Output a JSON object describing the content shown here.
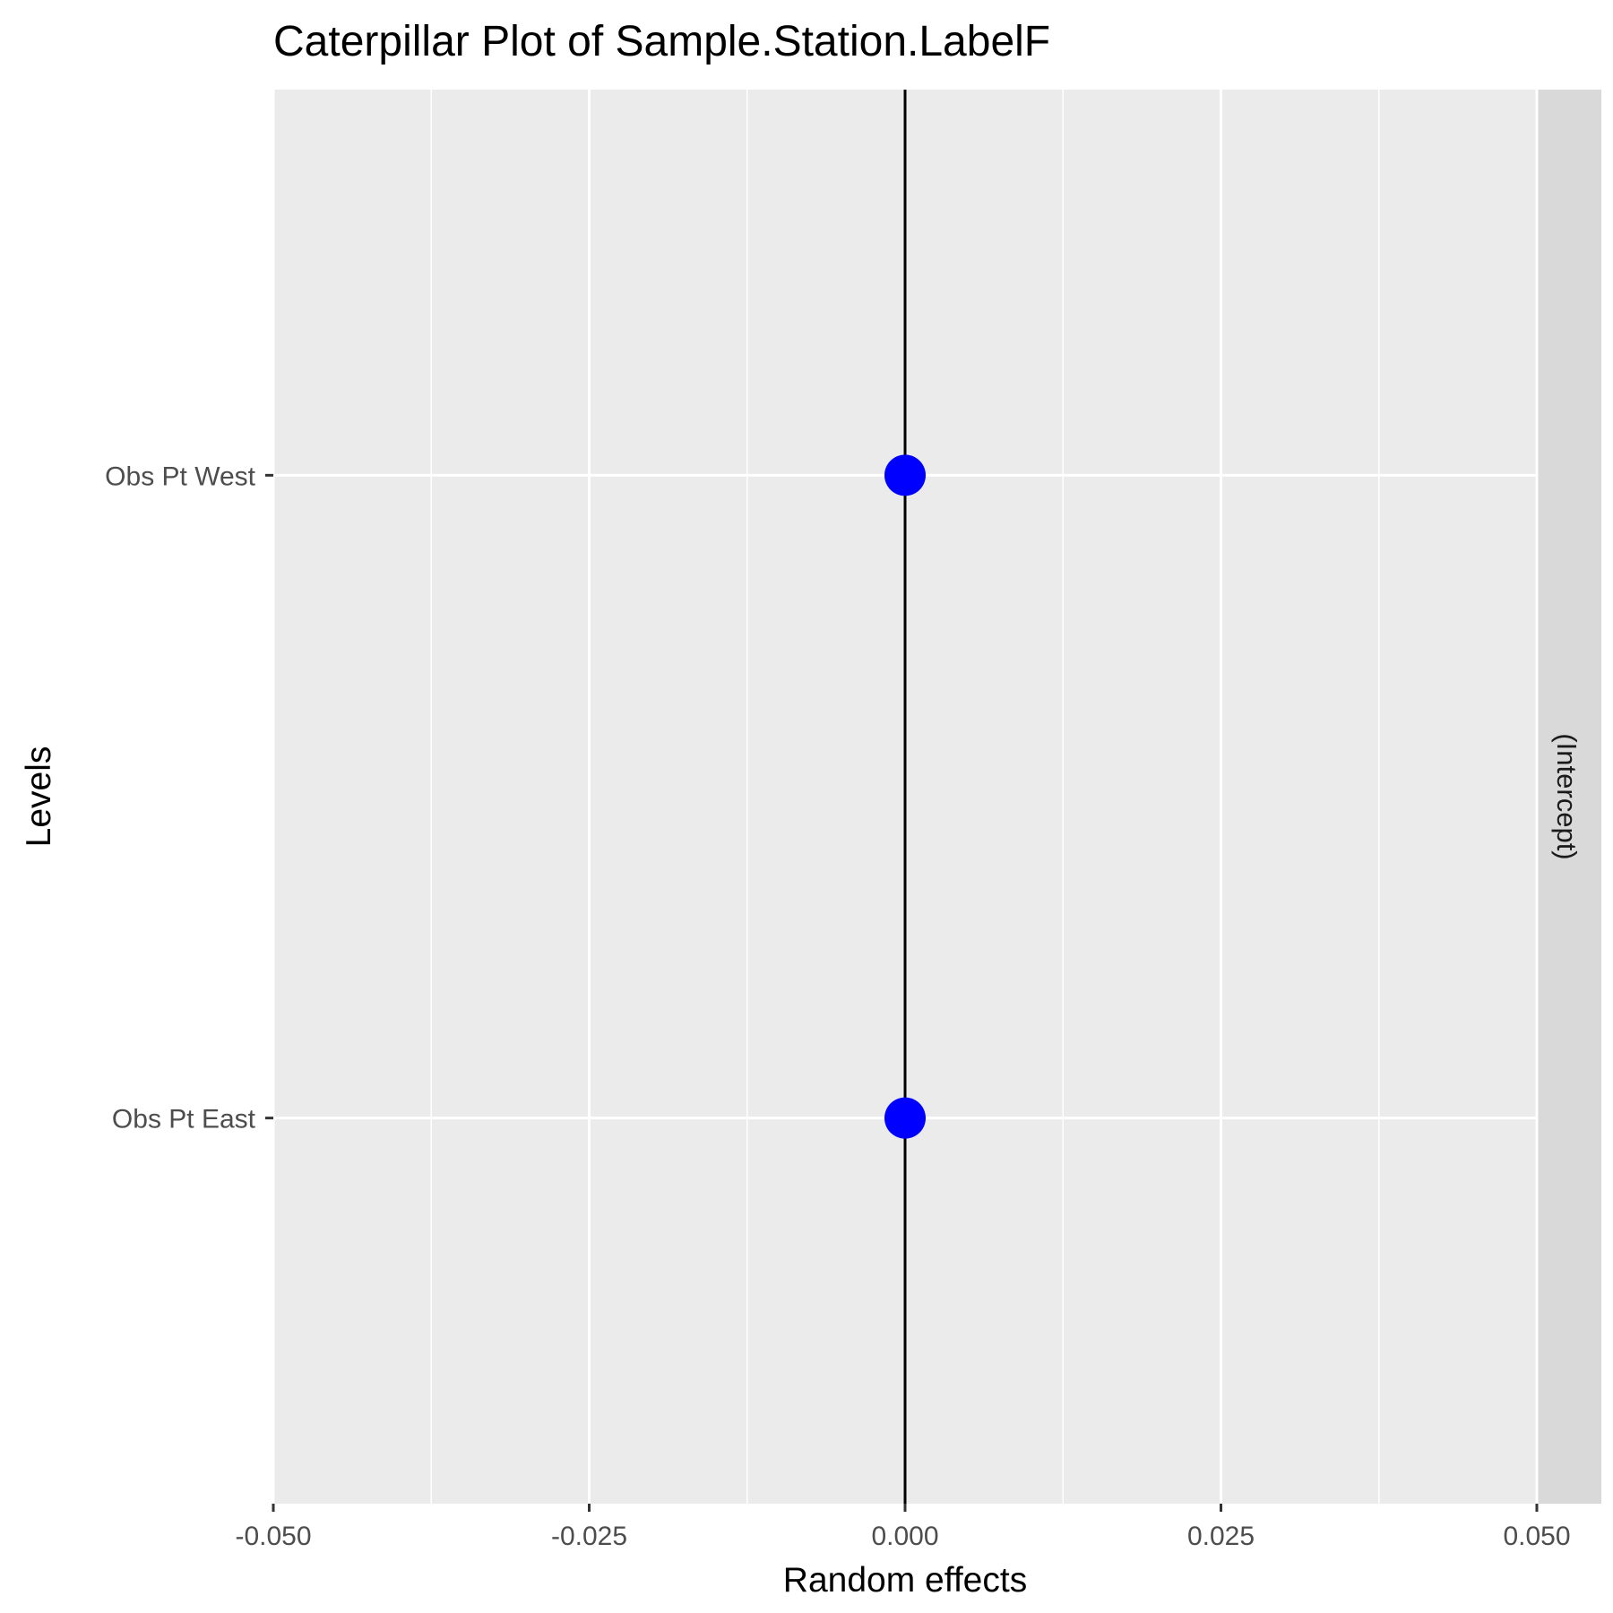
{
  "chart_data": {
    "type": "scatter",
    "title": "Caterpillar Plot of  Sample.Station.LabelF",
    "xlabel": "Random effects",
    "ylabel": "Levels",
    "facet_label": "(Intercept)",
    "xlim": [
      -0.05,
      0.05
    ],
    "x_ticks": [
      -0.05,
      -0.025,
      0,
      0.025,
      0.05
    ],
    "x_tick_labels": [
      "-0.050",
      "-0.025",
      "0.000",
      "0.025",
      "0.050"
    ],
    "categories": [
      "Obs Pt East",
      "Obs Pt West"
    ],
    "points": [
      {
        "level": "Obs Pt West",
        "value": 0.0
      },
      {
        "level": "Obs Pt East",
        "value": 0.0
      }
    ],
    "reference_line_x": 0,
    "grid": true,
    "colors": {
      "point": "#0000ff",
      "panel_background": "#ebebeb",
      "strip_background": "#d9d9d9",
      "grid": "#ffffff",
      "reference_line": "#000000"
    }
  }
}
